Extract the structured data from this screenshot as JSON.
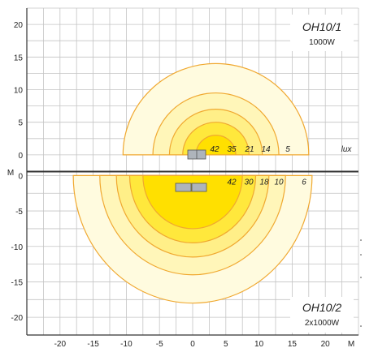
{
  "chart_data": [
    {
      "type": "isolux-diagram",
      "title": "OH10/1",
      "subtitle": "1000W",
      "unit_label": "lux",
      "axis_unit": "M",
      "xlim": [
        -25,
        25
      ],
      "ylim": [
        -2.5,
        22.5
      ],
      "x_ticks": [
        -20,
        -15,
        -10,
        -5,
        0,
        5,
        10,
        15,
        20
      ],
      "y_ticks": [
        0,
        5,
        10,
        15,
        20
      ],
      "grid": true,
      "contours": [
        {
          "lux": "5",
          "center_x": 3.5,
          "radius": 14
        },
        {
          "lux": "14",
          "center_x": 3.5,
          "radius": 9.5
        },
        {
          "lux": "21",
          "center_x": 3.5,
          "radius": 7
        },
        {
          "lux": "35",
          "center_x": 3.5,
          "radius": 5
        },
        {
          "lux": "42",
          "center_x": 3.5,
          "radius": 3
        }
      ]
    },
    {
      "type": "isolux-diagram",
      "title": "OH10/2",
      "subtitle": "2x1000W",
      "axis_unit": "M",
      "xlim": [
        -25,
        25
      ],
      "ylim": [
        -22.5,
        0.5
      ],
      "x_ticks": [
        -20,
        -15,
        -10,
        -5,
        0,
        5,
        10,
        15,
        20
      ],
      "x_tick_labels": [
        "-20",
        "-15",
        "-10",
        "-5",
        "0",
        "5",
        "10",
        "15",
        "20"
      ],
      "y_ticks": [
        0,
        -5,
        -10,
        -15,
        -20
      ],
      "y_tick_labels": [
        "0",
        "-5",
        "-10",
        "-15",
        "-20"
      ],
      "grid": true,
      "contours": [
        {
          "lux": "6",
          "center_x": 0,
          "radius": 18
        },
        {
          "lux": "10",
          "center_x": 0,
          "radius": 14
        },
        {
          "lux": "18",
          "center_x": 0,
          "radius": 11.5
        },
        {
          "lux": "30",
          "center_x": 0,
          "radius": 9.5
        },
        {
          "lux": "42",
          "center_x": 0,
          "radius": 7.5
        }
      ]
    }
  ],
  "colors": {
    "fills": [
      "#fffbdf",
      "#fff6b9",
      "#ffef88",
      "#ffe83c",
      "#ffe000"
    ],
    "contour_stroke": "#f0a830",
    "grid": "#c4c4c4",
    "frame": "#333333"
  }
}
